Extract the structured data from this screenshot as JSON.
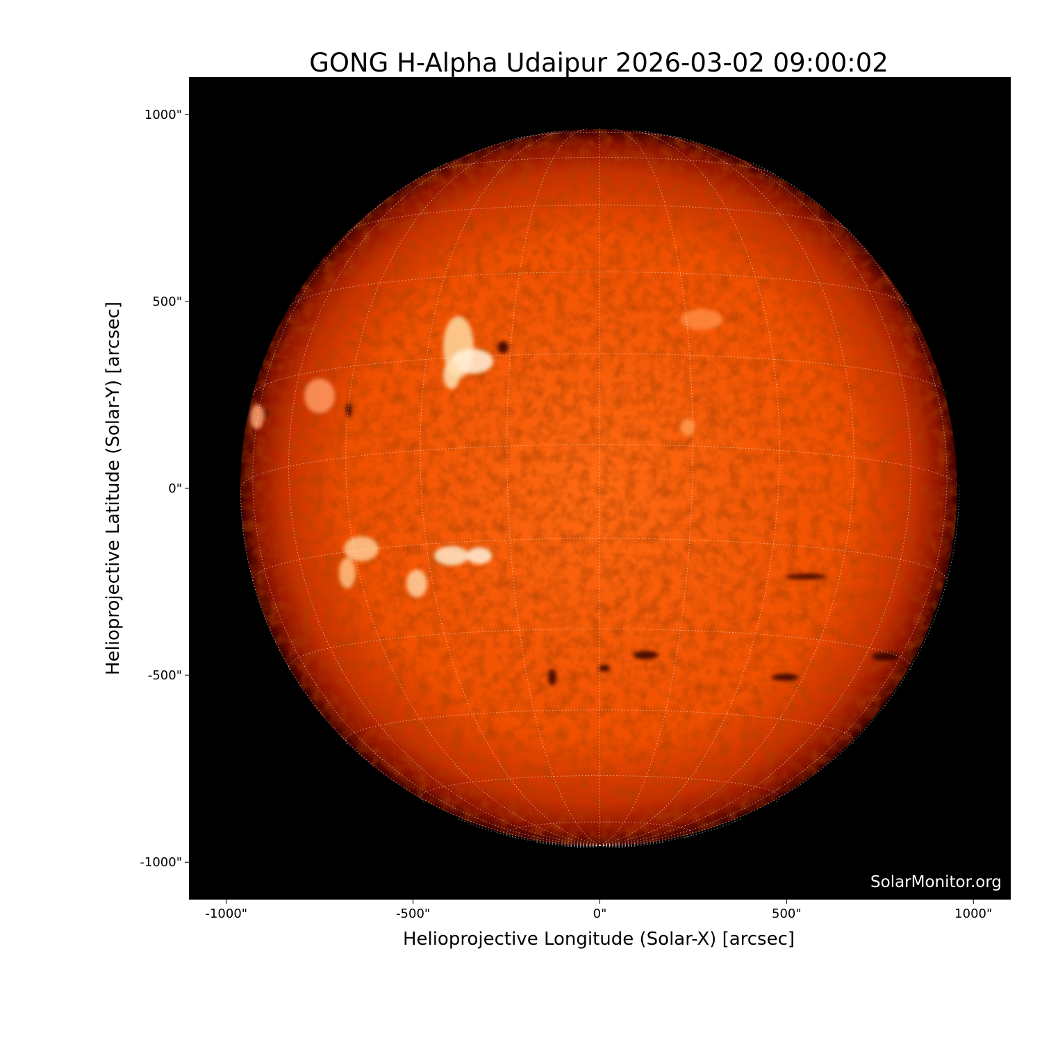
{
  "chart_data": {
    "type": "image",
    "title": "GONG H-Alpha Udaipur 2026-03-02 09:00:02",
    "xlabel": "Helioprojective Longitude (Solar-X) [arcsec]",
    "ylabel": "Helioprojective Latitude (Solar-Y) [arcsec]",
    "xlim": [
      -1100,
      1100
    ],
    "ylim": [
      -1100,
      1100
    ],
    "x_ticks": [
      -1000,
      -500,
      0,
      500,
      1000
    ],
    "y_ticks": [
      -1000,
      -500,
      0,
      500,
      1000
    ],
    "x_tick_labels": [
      "-1000\"",
      "-500\"",
      "0\"",
      "500\"",
      "1000\""
    ],
    "y_tick_labels": [
      "-1000\"",
      "-500\"",
      "0\"",
      "500\"",
      "1000\""
    ],
    "solar_radius_arcsec": 962,
    "grid": "heliographic, 15 degree spacing, dotted white",
    "colormap": "H-alpha red-orange",
    "colors": {
      "background": "#000000",
      "disk_center": "#ff6a10",
      "disk_limb": "#6a0a00",
      "plage": "#fff0d0",
      "grid": "#ffffff"
    },
    "watermark": "SolarMonitor.org"
  }
}
